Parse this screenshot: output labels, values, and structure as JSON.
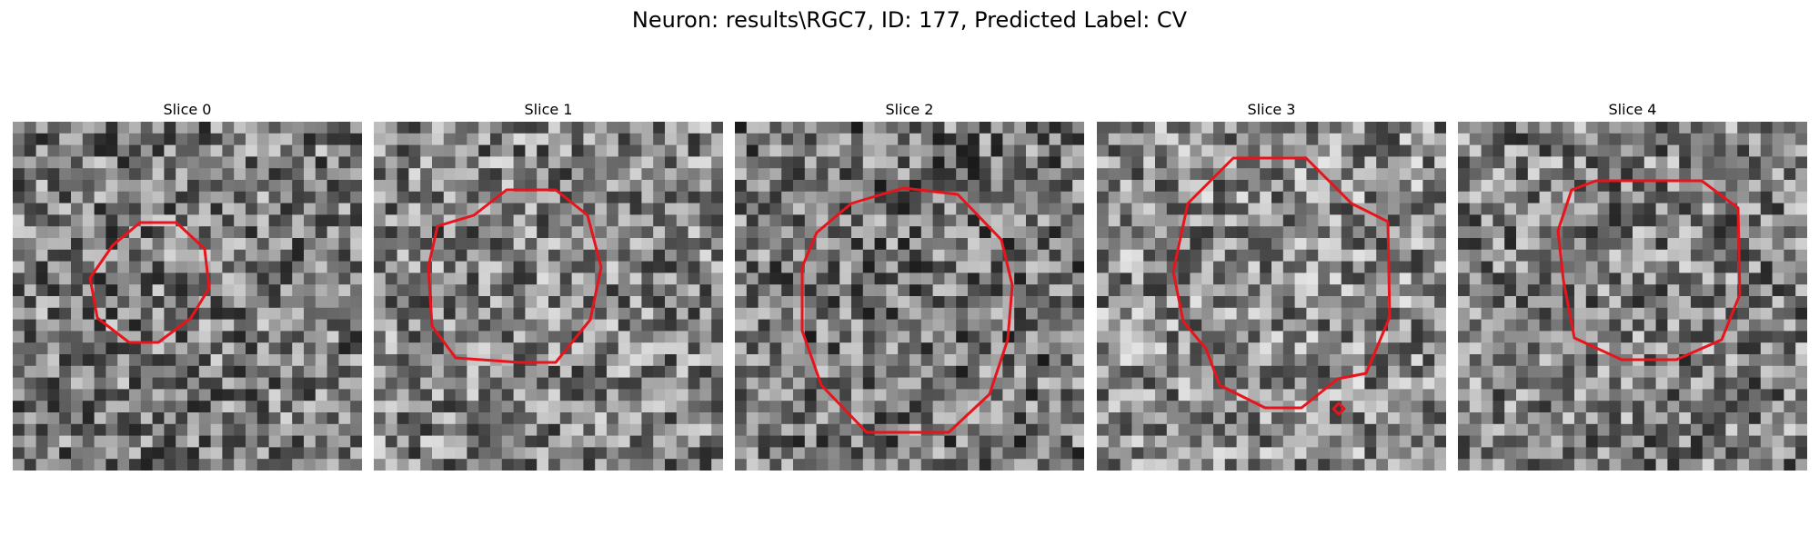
{
  "figure": {
    "title": "Neuron: results\\RGC7, ID: 177, Predicted Label: CV"
  },
  "panels": [
    {
      "title": "Slice 0",
      "seed": 11,
      "tone": 0.48
    },
    {
      "title": "Slice 1",
      "seed": 23,
      "tone": 0.52
    },
    {
      "title": "Slice 2",
      "seed": 37,
      "tone": 0.45
    },
    {
      "title": "Slice 3",
      "seed": 51,
      "tone": 0.55
    },
    {
      "title": "Slice 4",
      "seed": 73,
      "tone": 0.5
    }
  ],
  "colors": {
    "contour": "#e8141c"
  }
}
